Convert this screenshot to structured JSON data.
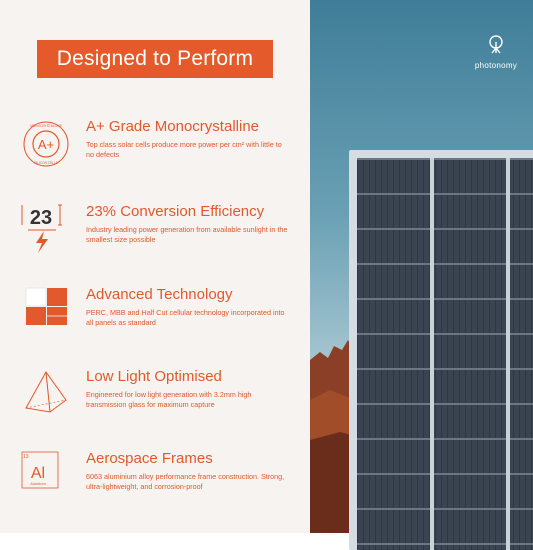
{
  "headline": "Designed to Perform",
  "brand": {
    "name": "photonomy"
  },
  "features": [
    {
      "title": "A+ Grade Monocrystalline",
      "desc": "Top class solar cells produce more power per cm² with little to no defects",
      "icon": "grade-badge-icon",
      "badge_letter": "A+",
      "badge_ring_top": "MONOCRYSTALLINE",
      "badge_ring_bottom": "SILICON CELLS"
    },
    {
      "title": "23% Conversion Efficiency",
      "desc": "Industry leading power generation from available sunlight in the smallest size possible",
      "icon": "efficiency-icon",
      "icon_number": "23"
    },
    {
      "title": "Advanced Technology",
      "desc": "PERC, MBB and Half Cut cellular technology incorporated into all panels as standard",
      "icon": "cell-grid-icon"
    },
    {
      "title": "Low Light Optimised",
      "desc": "Engineered for low light generation with 3.2mm high transmission glass for maximum capture",
      "icon": "prism-icon"
    },
    {
      "title": "Aerospace Frames",
      "desc": "6063 aluminium alloy performance frame construction. Strong, ultra-lightweight, and corrosion-proof",
      "icon": "aluminium-element-icon",
      "element_number": "13",
      "element_symbol": "Al",
      "element_name": "Alumium"
    }
  ],
  "colors": {
    "accent": "#e45a2b",
    "background": "#f7f3f0"
  }
}
